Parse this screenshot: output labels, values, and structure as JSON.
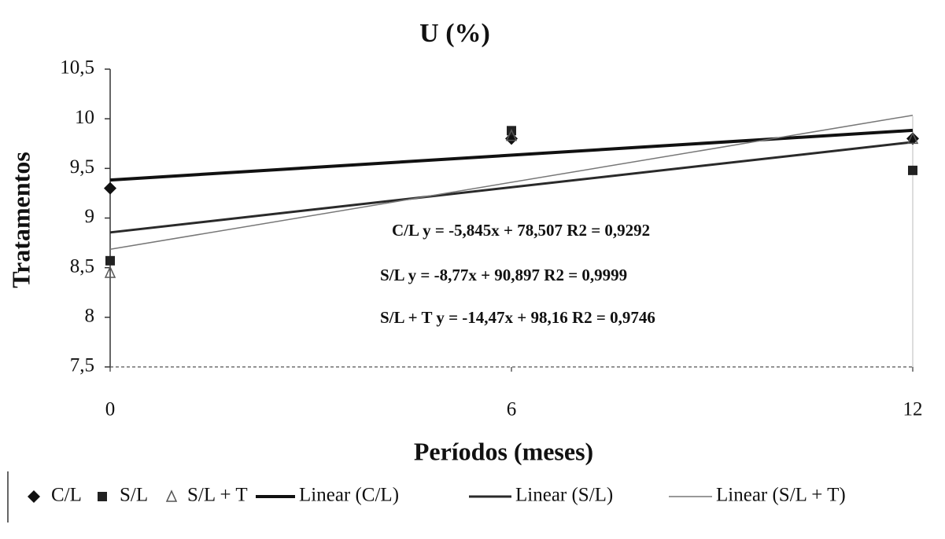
{
  "chart_data": {
    "type": "scatter",
    "title": "U (%)",
    "x_label": "Períodos (meses)",
    "y_label": "Tratamentos",
    "x": [
      0,
      6,
      12
    ],
    "xlim": [
      0,
      12
    ],
    "xticks": [
      0,
      6,
      12
    ],
    "ylim": [
      7.5,
      10.5
    ],
    "yticks": [
      {
        "value": 7.5,
        "label": "7,5"
      },
      8,
      {
        "value": 8.5,
        "label": "8,5"
      },
      9,
      {
        "value": 9.5,
        "label": "9,5"
      },
      10,
      {
        "value": 10.5,
        "label": "10,5"
      }
    ],
    "grid": false,
    "legend": "bottom",
    "series": [
      {
        "name": "C/L",
        "marker": "diamond",
        "color": "#111111",
        "values": [
          9.3,
          9.8,
          9.8
        ],
        "trendline": "Linear (C/L)",
        "trend_color": "#111111",
        "trend_width": 4
      },
      {
        "name": "S/L",
        "marker": "square",
        "color": "#222222",
        "values": [
          8.57,
          9.88,
          9.48
        ],
        "trendline": "Linear (S/L)",
        "trend_color": "#2a2a2a",
        "trend_width": 3
      },
      {
        "name": "S/L + T",
        "marker": "triangle",
        "color": "#555555",
        "values": [
          8.45,
          9.83,
          9.8
        ],
        "trendline": "Linear (S/L + T)",
        "trend_color": "#777777",
        "trend_width": 1.5
      }
    ],
    "annotations": [
      "C/L y = -5,845x + 78,507  R2 = 0,9292",
      "S/L y = -8,77x + 90,897  R2 = 0,9999",
      "S/L + T y = -14,47x + 98,16  R2 = 0,9746"
    ]
  }
}
